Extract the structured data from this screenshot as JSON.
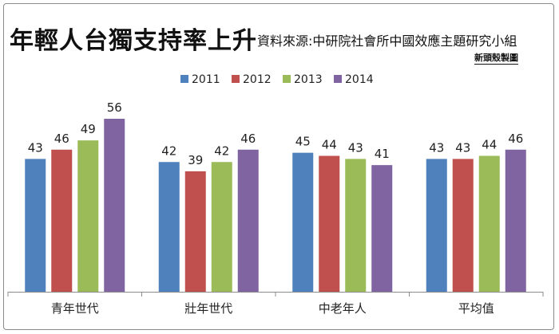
{
  "chart_data": {
    "type": "bar",
    "title": "年輕人台獨支持率上升",
    "subtitle": "資料來源:中研院社會所中國效應主題研究小組",
    "credit": "新頭殼製圖",
    "xlabel": "",
    "ylabel": "",
    "ylim": [
      0,
      60
    ],
    "grid": false,
    "legend": "top-center",
    "categories": [
      "青年世代",
      "壯年世代",
      "中老年人",
      "平均值"
    ],
    "series": [
      {
        "name": "2011",
        "color": "#4f81bd",
        "values": [
          43,
          42,
          45,
          43
        ]
      },
      {
        "name": "2012",
        "color": "#c0504d",
        "values": [
          46,
          39,
          44,
          43
        ]
      },
      {
        "name": "2013",
        "color": "#9bbb59",
        "values": [
          49,
          42,
          43,
          44
        ]
      },
      {
        "name": "2014",
        "color": "#8064a2",
        "values": [
          56,
          46,
          41,
          46
        ]
      }
    ]
  }
}
